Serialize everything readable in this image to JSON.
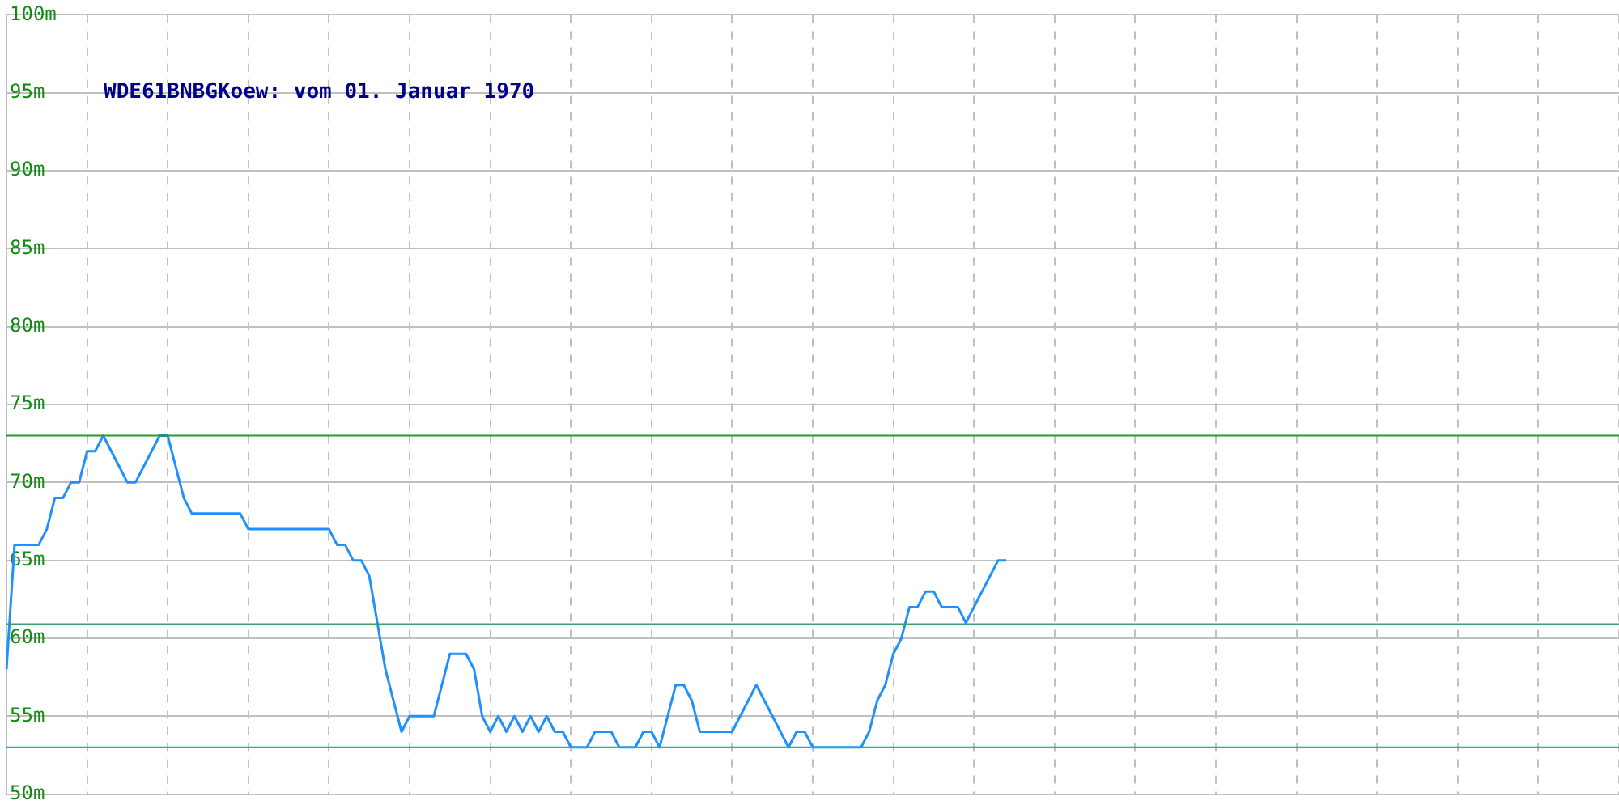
{
  "chart_data": {
    "type": "line",
    "title": "WDE61BNBGKoew: vom 01. Januar 1970",
    "categories": [
      null,
      null,
      null,
      null,
      null,
      null,
      null,
      null,
      null,
      null,
      null,
      null,
      null,
      null,
      null,
      null,
      null,
      null,
      null,
      null,
      null,
      null,
      null,
      null,
      null,
      null,
      null,
      null,
      null,
      null,
      null,
      null,
      null,
      null,
      null,
      null,
      null,
      null,
      null,
      null,
      null,
      null,
      null,
      null,
      null,
      null,
      null,
      null,
      null,
      null,
      null,
      null,
      null,
      null,
      null,
      null,
      null,
      null,
      null,
      null,
      null,
      null,
      null,
      null,
      null,
      null,
      null,
      null,
      null,
      null,
      null,
      null,
      null,
      null,
      null,
      null,
      null,
      null,
      null,
      null,
      null,
      null,
      null,
      null,
      null,
      null,
      null,
      null,
      null,
      null,
      null,
      null,
      null,
      null,
      null,
      null,
      null,
      null,
      null,
      null,
      null,
      null,
      null,
      null,
      null,
      null,
      null,
      null,
      null,
      null,
      null,
      null,
      null,
      null,
      null,
      null,
      null,
      null,
      null,
      null,
      null,
      null,
      null,
      null,
      null,
      null,
      null,
      null,
      null,
      null,
      null,
      null,
      null,
      null,
      null,
      null,
      null,
      null,
      null,
      null,
      null,
      null,
      null,
      null,
      null,
      null,
      null,
      null,
      null,
      null,
      null,
      null,
      null,
      null,
      null,
      null,
      null,
      null,
      null,
      null,
      null,
      null,
      null,
      null,
      null,
      null,
      null,
      null,
      null,
      null,
      null,
      null,
      null,
      null,
      null,
      null,
      null,
      null,
      null,
      null,
      null,
      null,
      null,
      null,
      null,
      null,
      null,
      null,
      null,
      null,
      null,
      null,
      null,
      null,
      null,
      null,
      null,
      null,
      null,
      null,
      null
    ],
    "series": [
      {
        "color": "#1e90ff",
        "values": [
          58,
          66,
          66,
          66,
          66,
          67,
          69,
          69,
          70,
          70,
          72,
          72,
          73,
          72,
          71,
          70,
          70,
          71,
          72,
          73,
          73,
          71,
          69,
          68,
          68,
          68,
          68,
          68,
          68,
          68,
          67,
          67,
          67,
          67,
          67,
          67,
          67,
          67,
          67,
          67,
          67,
          66,
          66,
          65,
          65,
          64,
          61,
          58,
          56,
          54,
          55,
          55,
          55,
          55,
          57,
          59,
          59,
          59,
          58,
          55,
          54,
          55,
          54,
          55,
          54,
          55,
          54,
          55,
          54,
          54,
          53,
          53,
          53,
          54,
          54,
          54,
          53,
          53,
          53,
          54,
          54,
          53,
          55,
          57,
          57,
          56,
          54,
          54,
          54,
          54,
          54,
          55,
          56,
          57,
          56,
          55,
          54,
          53,
          54,
          54,
          53,
          53,
          53,
          53,
          53,
          53,
          53,
          54,
          56,
          57,
          59,
          60,
          62,
          62,
          63,
          63,
          62,
          62,
          62,
          61,
          62,
          63,
          64,
          65,
          65,
          null,
          null,
          null,
          null,
          null,
          null,
          null,
          null,
          null,
          null,
          null,
          null,
          null,
          null,
          null,
          null,
          null,
          null,
          null,
          null,
          null,
          null,
          null,
          null,
          null,
          null,
          null,
          null,
          null,
          null,
          null,
          null,
          null,
          null,
          null,
          null,
          null,
          null,
          null,
          null,
          null,
          null,
          null,
          null,
          null,
          null,
          null,
          null,
          null,
          null,
          null,
          null,
          null,
          null,
          null,
          null,
          null,
          null,
          null,
          null,
          null,
          null,
          null,
          null,
          null,
          null,
          null,
          null,
          null,
          null,
          null,
          null,
          null,
          null,
          null,
          null
        ]
      }
    ],
    "ylim": [
      50,
      100
    ],
    "yticks": [
      {
        "value": 50,
        "label": "50m"
      },
      {
        "value": 55,
        "label": "55m"
      },
      {
        "value": 60,
        "label": "60m"
      },
      {
        "value": 65,
        "label": "65m"
      },
      {
        "value": 70,
        "label": "70m"
      },
      {
        "value": 75,
        "label": "75m"
      },
      {
        "value": 80,
        "label": "80m"
      },
      {
        "value": 85,
        "label": "85m"
      },
      {
        "value": 90,
        "label": "90m"
      },
      {
        "value": 95,
        "label": "95m"
      },
      {
        "value": 100,
        "label": "100m"
      }
    ],
    "tick_labels": "y",
    "grid": true,
    "legend": false,
    "marker": "none",
    "line_style": "solid",
    "ref_lines": [
      {
        "axis": "y",
        "value": 73,
        "color": "#2a9a2a"
      },
      {
        "axis": "y",
        "value": 60.9,
        "color": "#3c9f6e"
      },
      {
        "axis": "y",
        "value": 53,
        "color": "#1fb0b0"
      }
    ]
  }
}
